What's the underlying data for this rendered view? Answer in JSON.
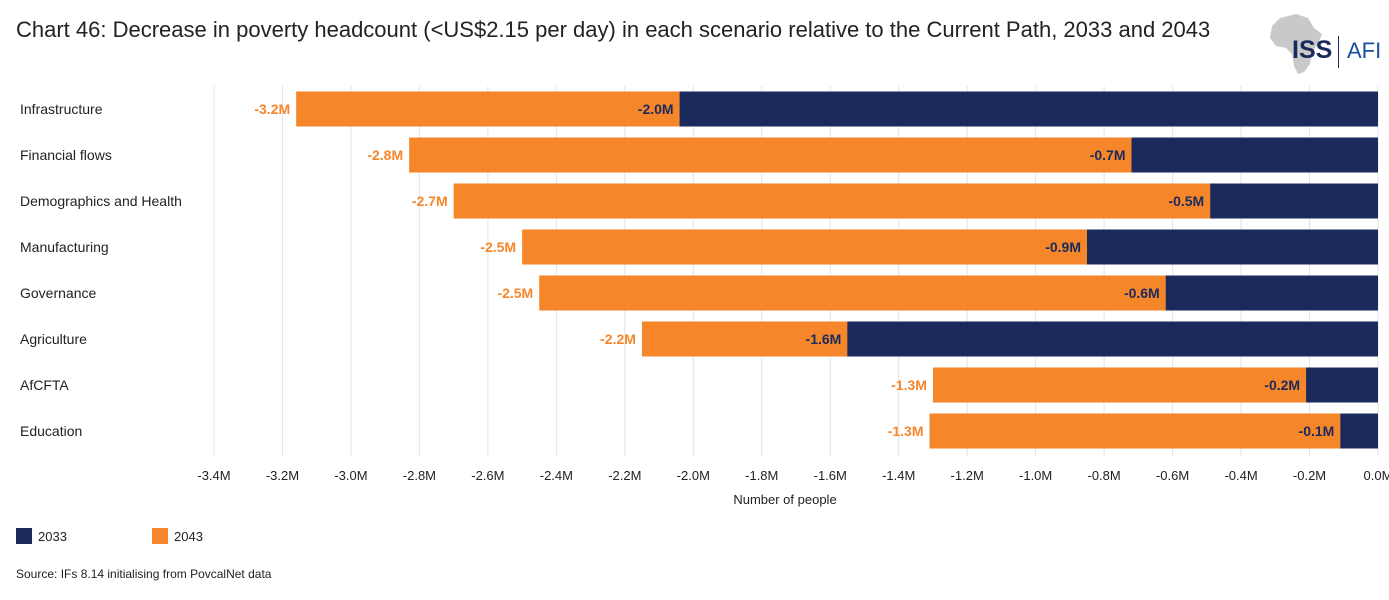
{
  "title": "Chart 46: Decrease in poverty headcount (<US$2.15 per day) in each scenario relative to the Current Path, 2033 and 2043",
  "logo": {
    "primary": "ISS",
    "secondary": "AFI"
  },
  "source": "Source: IFs 8.14 initialising from PovcalNet data",
  "colors": {
    "2033": "#1b2a5c",
    "2043": "#f5862a",
    "grid": "#e3e3e3",
    "label2043": "#f5862a",
    "label2033": "#1b2a5c"
  },
  "chart_data": {
    "type": "bar",
    "orientation": "horizontal",
    "categories": [
      "Infrastructure",
      "Financial flows",
      "Demographics and Health",
      "Manufacturing",
      "Governance",
      "Agriculture",
      "AfCFTA",
      "Education"
    ],
    "series": [
      {
        "name": "2033",
        "values": [
          -2.04,
          -0.72,
          -0.49,
          -0.85,
          -0.62,
          -1.55,
          -0.21,
          -0.11
        ],
        "labels": [
          "-2.0M",
          "-0.7M",
          "-0.5M",
          "-0.9M",
          "-0.6M",
          "-1.6M",
          "-0.2M",
          "-0.1M"
        ]
      },
      {
        "name": "2043",
        "values": [
          -3.16,
          -2.83,
          -2.7,
          -2.5,
          -2.45,
          -2.15,
          -1.3,
          -1.31
        ],
        "labels": [
          "-3.2M",
          "-2.8M",
          "-2.7M",
          "-2.5M",
          "-2.5M",
          "-2.2M",
          "-1.3M",
          "-1.3M"
        ]
      }
    ],
    "xlabel": "Number of people",
    "ylabel": "",
    "xlim": [
      -3.4,
      0
    ],
    "xticks": [
      -3.4,
      -3.2,
      -3.0,
      -2.8,
      -2.6,
      -2.4,
      -2.2,
      -2.0,
      -1.8,
      -1.6,
      -1.4,
      -1.2,
      -1.0,
      -0.8,
      -0.6,
      -0.4,
      -0.2,
      0.0
    ],
    "xtick_labels": [
      "-3.4M",
      "-3.2M",
      "-3.0M",
      "-2.8M",
      "-2.6M",
      "-2.4M",
      "-2.2M",
      "-2.0M",
      "-1.8M",
      "-1.6M",
      "-1.4M",
      "-1.2M",
      "-1.0M",
      "-0.8M",
      "-0.6M",
      "-0.4M",
      "-0.2M",
      "0.0M"
    ],
    "grid": true,
    "legend_position": "bottom-left"
  }
}
